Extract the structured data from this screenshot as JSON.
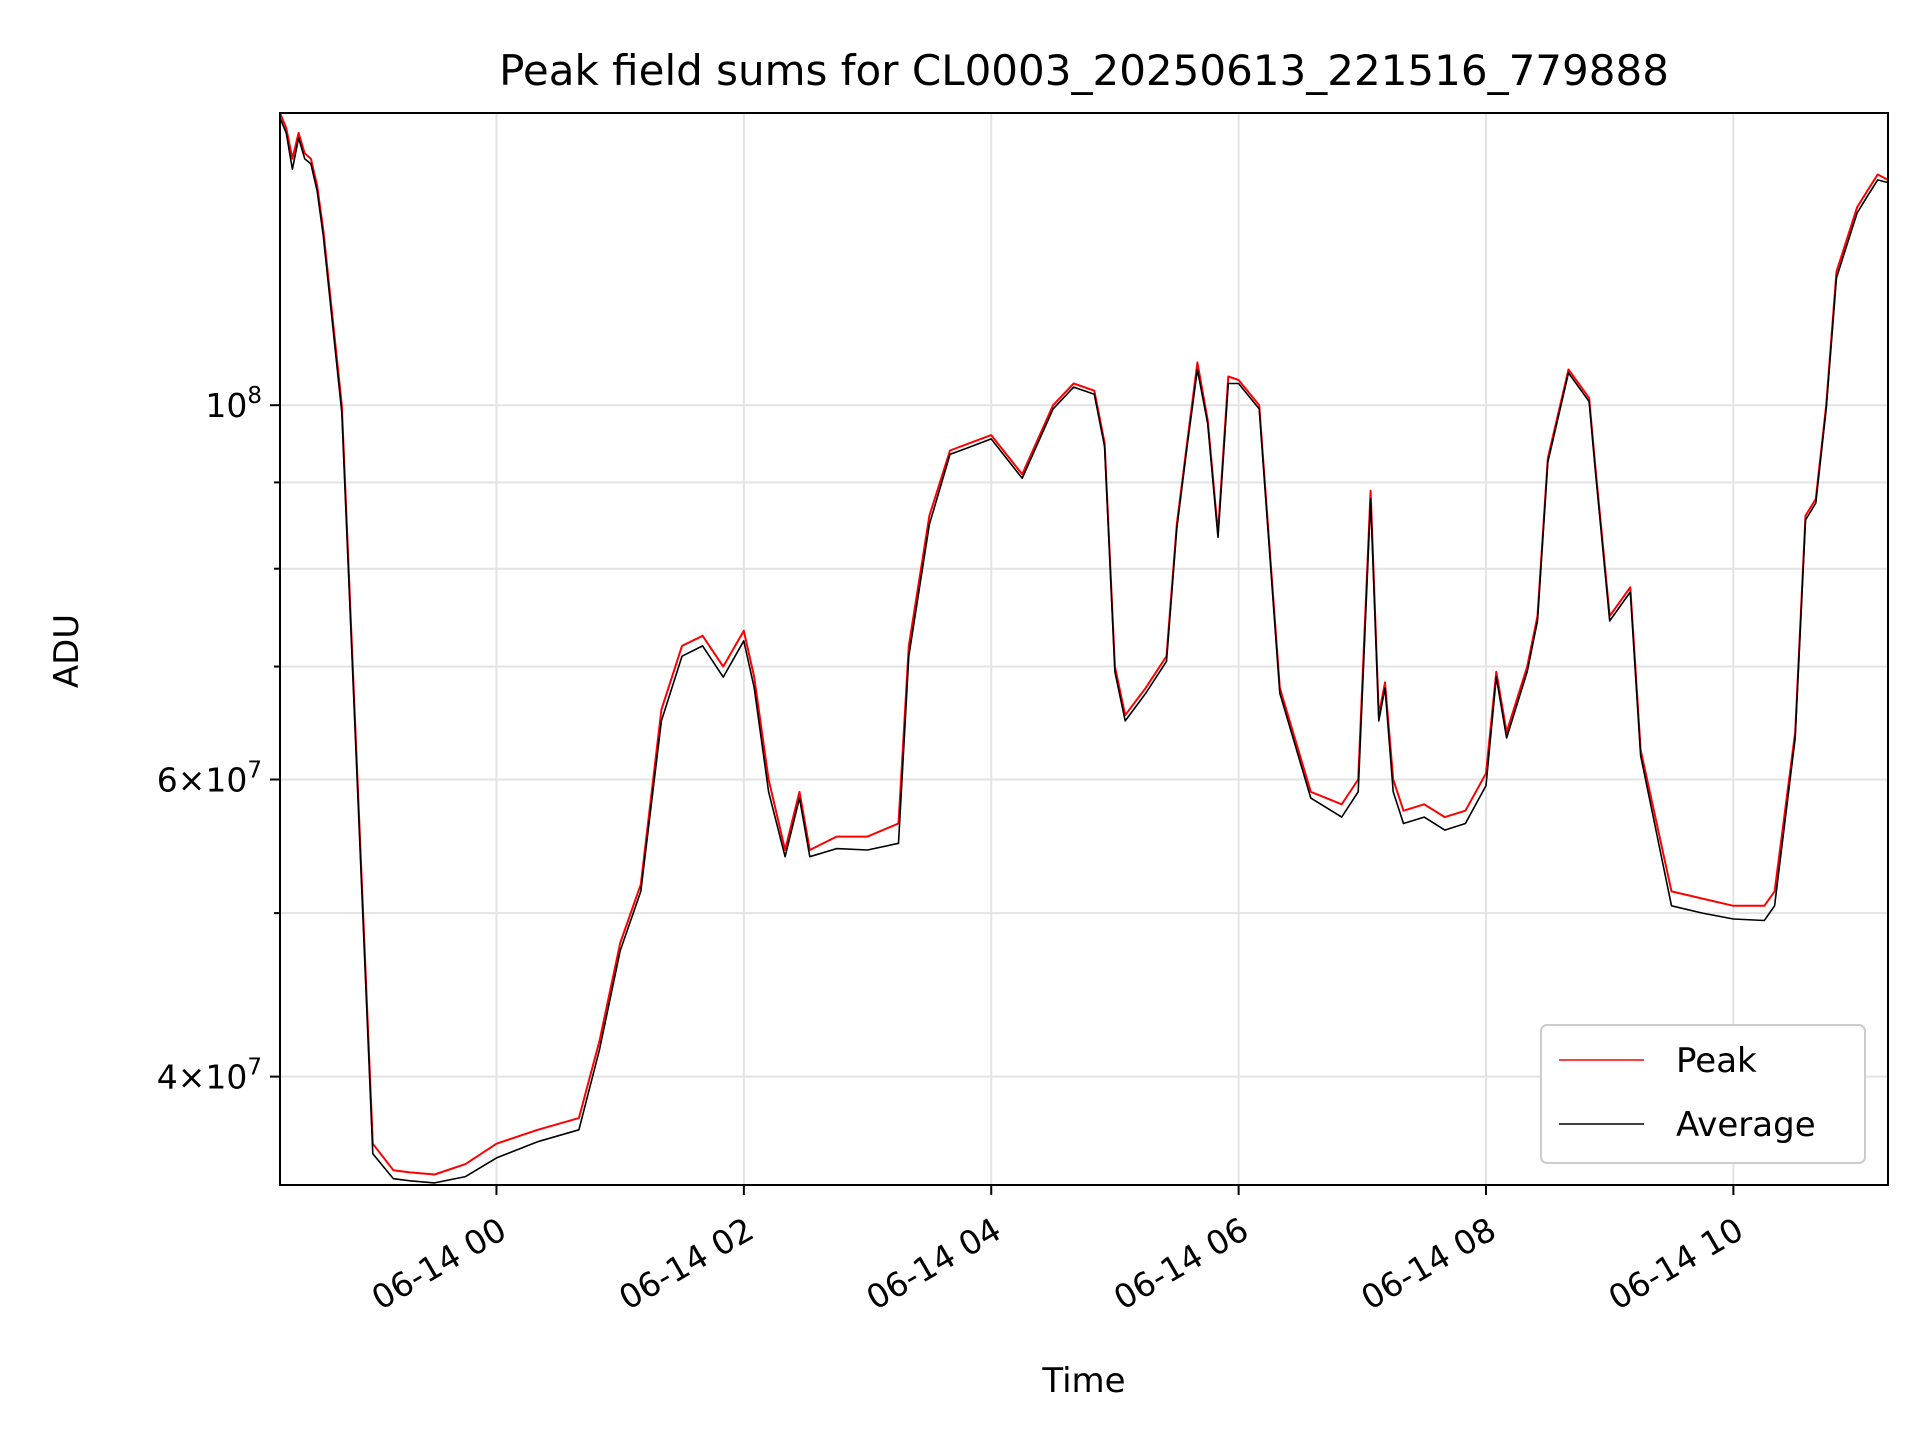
{
  "chart_data": {
    "type": "line",
    "title": "Peak field sums for CL0003_20250613_221516_779888",
    "xlabel": "Time",
    "ylabel": "ADU",
    "y_scale": "log",
    "xlim": [
      "06-13 22:15",
      "06-14 11:15"
    ],
    "ylim": [
      34500000,
      149000000
    ],
    "grid": true,
    "legend_position": "lower right",
    "x_ticks": [
      "06-14 00",
      "06-14 02",
      "06-14 04",
      "06-14 06",
      "06-14 08",
      "06-14 10"
    ],
    "y_tick_labels": [
      "10^8",
      "6×10^7",
      "4×10^7"
    ],
    "y_ticks_major": [
      100000000,
      60000000,
      40000000
    ],
    "y_ticks_minor": [
      90000000,
      80000000,
      70000000,
      50000000
    ],
    "series": [
      {
        "name": "Peak",
        "color": "#ff0000"
      },
      {
        "name": "Average",
        "color": "#000000"
      }
    ],
    "x": [
      "06-13 22:15",
      "06-13 22:18",
      "06-13 22:21",
      "06-13 22:24",
      "06-13 22:27",
      "06-13 22:30",
      "06-13 22:33",
      "06-13 22:36",
      "06-13 22:45",
      "06-13 23:00",
      "06-13 23:10",
      "06-13 23:18",
      "06-13 23:30",
      "06-13 23:45",
      "06-14 00:00",
      "06-14 00:20",
      "06-14 00:40",
      "06-14 00:50",
      "06-14 01:00",
      "06-14 01:10",
      "06-14 01:20",
      "06-14 01:30",
      "06-14 01:40",
      "06-14 01:50",
      "06-14 02:00",
      "06-14 02:05",
      "06-14 02:12",
      "06-14 02:20",
      "06-14 02:27",
      "06-14 02:32",
      "06-14 02:45",
      "06-14 03:00",
      "06-14 03:15",
      "06-14 03:20",
      "06-14 03:30",
      "06-14 03:40",
      "06-14 03:50",
      "06-14 04:00",
      "06-14 04:15",
      "06-14 04:30",
      "06-14 04:40",
      "06-14 04:50",
      "06-14 04:55",
      "06-14 05:00",
      "06-14 05:05",
      "06-14 05:15",
      "06-14 05:25",
      "06-14 05:30",
      "06-14 05:35",
      "06-14 05:40",
      "06-14 05:45",
      "06-14 05:50",
      "06-14 05:55",
      "06-14 06:00",
      "06-14 06:10",
      "06-14 06:20",
      "06-14 06:35",
      "06-14 06:50",
      "06-14 06:58",
      "06-14 07:04",
      "06-14 07:08",
      "06-14 07:11",
      "06-14 07:15",
      "06-14 07:20",
      "06-14 07:30",
      "06-14 07:40",
      "06-14 07:50",
      "06-14 08:00",
      "06-14 08:05",
      "06-14 08:10",
      "06-14 08:20",
      "06-14 08:25",
      "06-14 08:30",
      "06-14 08:40",
      "06-14 08:50",
      "06-14 08:53",
      "06-14 09:00",
      "06-14 09:10",
      "06-14 09:15",
      "06-14 09:30",
      "06-14 09:45",
      "06-14 10:00",
      "06-14 10:15",
      "06-14 10:20",
      "06-14 10:30",
      "06-14 10:35",
      "06-14 10:40",
      "06-14 10:45",
      "06-14 10:50",
      "06-14 11:00",
      "06-14 11:05",
      "06-14 11:10",
      "06-14 11:15"
    ],
    "peak_values": [
      149000000,
      146000000,
      140000000,
      145000000,
      141000000,
      140000000,
      135000000,
      127000000,
      100000000,
      36500000,
      35200000,
      35100000,
      35000000,
      35500000,
      36500000,
      37200000,
      37800000,
      42000000,
      48000000,
      52000000,
      66000000,
      72000000,
      73000000,
      70000000,
      73500000,
      69000000,
      60000000,
      54500000,
      59000000,
      54500000,
      55500000,
      55500000,
      56500000,
      72000000,
      86000000,
      94000000,
      95000000,
      96000000,
      91000000,
      100000000,
      103000000,
      102000000,
      95000000,
      70000000,
      65500000,
      68000000,
      71000000,
      85000000,
      95000000,
      106000000,
      98000000,
      84000000,
      104000000,
      103500000,
      100000000,
      68000000,
      59000000,
      58000000,
      60000000,
      89000000,
      65500000,
      68500000,
      60000000,
      57500000,
      58000000,
      57000000,
      57500000,
      60500000,
      69500000,
      64000000,
      70000000,
      75000000,
      93000000,
      105000000,
      101000000,
      92000000,
      75000000,
      78000000,
      62500000,
      51500000,
      51000000,
      50500000,
      50500000,
      51500000,
      64000000,
      86000000,
      88000000,
      100000000,
      120000000,
      131000000,
      134000000,
      137000000,
      136000000
    ],
    "average_values": [
      148000000,
      145000000,
      138000000,
      144000000,
      140000000,
      139000000,
      134000000,
      126000000,
      99000000,
      36000000,
      34800000,
      34700000,
      34600000,
      34900000,
      35800000,
      36600000,
      37200000,
      41500000,
      47500000,
      51500000,
      65000000,
      71000000,
      72000000,
      69000000,
      72500000,
      68000000,
      59000000,
      54000000,
      58500000,
      54000000,
      54600000,
      54500000,
      55000000,
      71000000,
      85000000,
      93500000,
      94500000,
      95500000,
      90500000,
      99500000,
      102500000,
      101500000,
      94500000,
      69500000,
      65000000,
      67500000,
      70500000,
      84500000,
      94500000,
      105000000,
      97500000,
      83500000,
      103000000,
      103000000,
      99500000,
      67500000,
      58500000,
      57000000,
      59000000,
      88000000,
      65000000,
      68000000,
      59000000,
      56500000,
      57000000,
      56000000,
      56500000,
      59500000,
      69000000,
      63500000,
      69500000,
      74500000,
      92500000,
      104500000,
      100500000,
      91500000,
      74500000,
      77500000,
      62000000,
      50500000,
      50000000,
      49600000,
      49500000,
      50500000,
      63500000,
      85500000,
      87500000,
      99500000,
      119000000,
      130000000,
      133000000,
      136000000,
      135500000
    ]
  }
}
